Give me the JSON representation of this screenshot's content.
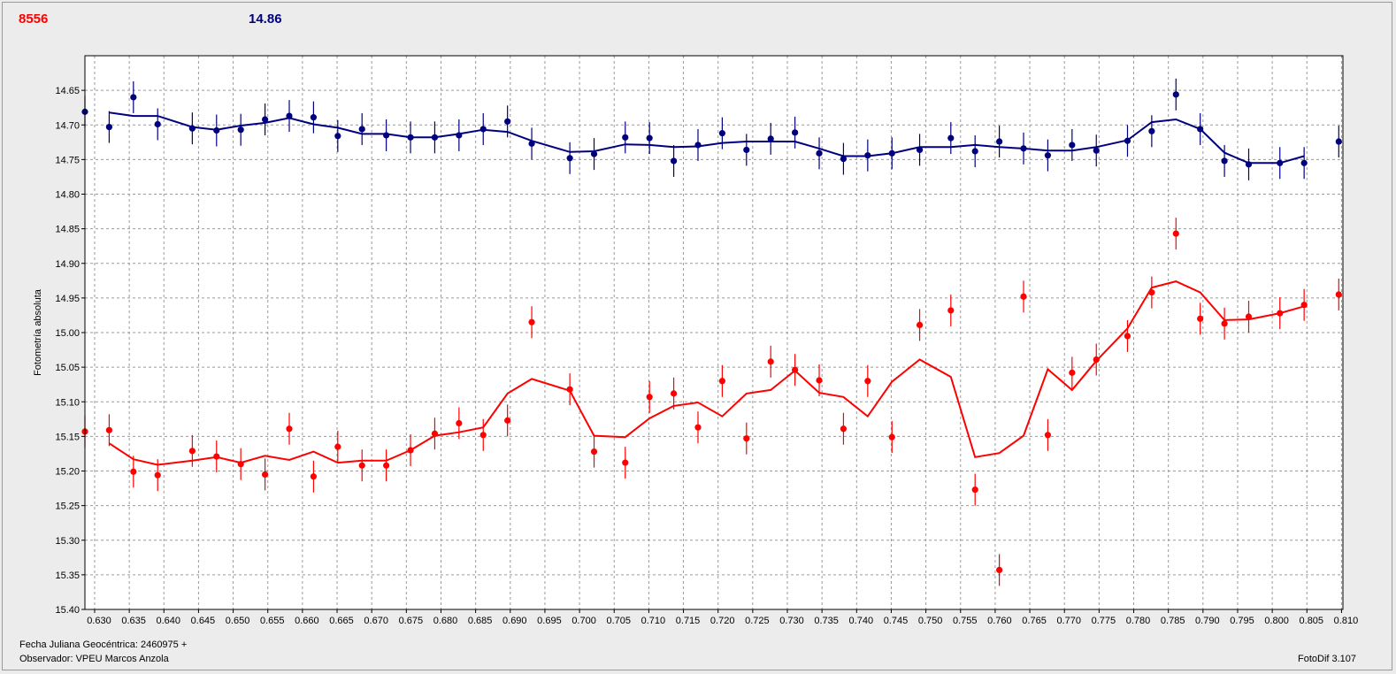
{
  "header": {
    "left_value": "8556",
    "left_color": "#ff0000",
    "mid_value": "14.86",
    "mid_color": "#00007f"
  },
  "footer": {
    "jd_label": "Fecha Juliana Geocéntrica: 2460975 +",
    "observer": "Observador: VPEU Marcos Anzola",
    "software": "FotoDif 3.107"
  },
  "chart_data": {
    "type": "scatter",
    "title": "",
    "xlabel": "",
    "ylabel": "Fotometría absoluta",
    "xlim": [
      0.6286,
      0.8102
    ],
    "ylim": [
      14.6,
      15.4
    ],
    "y_inverted": true,
    "grid": true,
    "x_ticks": [
      "0.630",
      "0.635",
      "0.640",
      "0.645",
      "0.650",
      "0.655",
      "0.660",
      "0.665",
      "0.670",
      "0.675",
      "0.680",
      "0.685",
      "0.690",
      "0.695",
      "0.700",
      "0.705",
      "0.710",
      "0.715",
      "0.720",
      "0.725",
      "0.730",
      "0.735",
      "0.740",
      "0.745",
      "0.750",
      "0.755",
      "0.760",
      "0.765",
      "0.770",
      "0.775",
      "0.780",
      "0.785",
      "0.790",
      "0.795",
      "0.800",
      "0.805",
      "0.810"
    ],
    "y_ticks": [
      "14.65",
      "14.70",
      "14.75",
      "14.80",
      "14.85",
      "14.90",
      "14.95",
      "15.00",
      "15.05",
      "15.10",
      "15.15",
      "15.20",
      "15.25",
      "15.30",
      "15.35",
      "15.40"
    ],
    "series": [
      {
        "color": "#00007f",
        "points": [
          [
            0.6286,
            14.681
          ],
          [
            0.6321,
            14.703
          ],
          [
            0.6356,
            14.66
          ],
          [
            0.6391,
            14.699
          ],
          [
            0.6441,
            14.705
          ],
          [
            0.6476,
            14.708
          ],
          [
            0.6511,
            14.707
          ],
          [
            0.6546,
            14.692
          ],
          [
            0.6581,
            14.687
          ],
          [
            0.6616,
            14.689
          ],
          [
            0.6651,
            14.716
          ],
          [
            0.6686,
            14.706
          ],
          [
            0.6721,
            14.715
          ],
          [
            0.6756,
            14.718
          ],
          [
            0.6791,
            14.718
          ],
          [
            0.6826,
            14.715
          ],
          [
            0.6861,
            14.706
          ],
          [
            0.6896,
            14.695
          ],
          [
            0.6931,
            14.727
          ],
          [
            0.6986,
            14.748
          ],
          [
            0.7021,
            14.742
          ],
          [
            0.7066,
            14.718
          ],
          [
            0.7101,
            14.719
          ],
          [
            0.7136,
            14.752
          ],
          [
            0.7171,
            14.729
          ],
          [
            0.7206,
            14.712
          ],
          [
            0.7241,
            14.736
          ],
          [
            0.7276,
            14.72
          ],
          [
            0.7311,
            14.711
          ],
          [
            0.7346,
            14.741
          ],
          [
            0.7381,
            14.749
          ],
          [
            0.7416,
            14.744
          ],
          [
            0.7451,
            14.741
          ],
          [
            0.7491,
            14.736
          ],
          [
            0.7536,
            14.719
          ],
          [
            0.7571,
            14.738
          ],
          [
            0.7606,
            14.724
          ],
          [
            0.7641,
            14.734
          ],
          [
            0.7676,
            14.744
          ],
          [
            0.7711,
            14.729
          ],
          [
            0.7746,
            14.737
          ],
          [
            0.7791,
            14.723
          ],
          [
            0.7826,
            14.709
          ],
          [
            0.7861,
            14.656
          ],
          [
            0.7896,
            14.706
          ],
          [
            0.7931,
            14.752
          ],
          [
            0.7966,
            14.757
          ],
          [
            0.8011,
            14.755
          ],
          [
            0.8046,
            14.755
          ],
          [
            0.8096,
            14.724
          ]
        ],
        "line": [
          [
            0.6321,
            14.682
          ],
          [
            0.6356,
            14.687
          ],
          [
            0.6391,
            14.687
          ],
          [
            0.6441,
            14.703
          ],
          [
            0.6476,
            14.707
          ],
          [
            0.6511,
            14.701
          ],
          [
            0.6546,
            14.697
          ],
          [
            0.6581,
            14.69
          ],
          [
            0.6616,
            14.699
          ],
          [
            0.6651,
            14.704
          ],
          [
            0.6686,
            14.713
          ],
          [
            0.6721,
            14.713
          ],
          [
            0.6756,
            14.718
          ],
          [
            0.6791,
            14.718
          ],
          [
            0.6826,
            14.713
          ],
          [
            0.6861,
            14.707
          ],
          [
            0.6896,
            14.71
          ],
          [
            0.6931,
            14.723
          ],
          [
            0.6986,
            14.739
          ],
          [
            0.7021,
            14.738
          ],
          [
            0.7066,
            14.728
          ],
          [
            0.7101,
            14.729
          ],
          [
            0.7136,
            14.732
          ],
          [
            0.7171,
            14.731
          ],
          [
            0.7206,
            14.726
          ],
          [
            0.7241,
            14.724
          ],
          [
            0.7276,
            14.724
          ],
          [
            0.7311,
            14.724
          ],
          [
            0.7346,
            14.734
          ],
          [
            0.7381,
            14.745
          ],
          [
            0.7416,
            14.745
          ],
          [
            0.7451,
            14.741
          ],
          [
            0.7491,
            14.732
          ],
          [
            0.7536,
            14.732
          ],
          [
            0.7571,
            14.729
          ],
          [
            0.7606,
            14.732
          ],
          [
            0.7641,
            14.734
          ],
          [
            0.7676,
            14.737
          ],
          [
            0.7711,
            14.737
          ],
          [
            0.7746,
            14.732
          ],
          [
            0.7791,
            14.722
          ],
          [
            0.7826,
            14.696
          ],
          [
            0.7861,
            14.692
          ],
          [
            0.7896,
            14.706
          ],
          [
            0.7931,
            14.74
          ],
          [
            0.7966,
            14.755
          ],
          [
            0.8011,
            14.755
          ],
          [
            0.8046,
            14.745
          ]
        ]
      },
      {
        "color": "#ff0000",
        "points": [
          [
            0.6286,
            15.143
          ],
          [
            0.6321,
            15.141
          ],
          [
            0.6356,
            15.201
          ],
          [
            0.6391,
            15.206
          ],
          [
            0.6441,
            15.171
          ],
          [
            0.6476,
            15.179
          ],
          [
            0.6511,
            15.19
          ],
          [
            0.6546,
            15.205
          ],
          [
            0.6581,
            15.139
          ],
          [
            0.6616,
            15.208
          ],
          [
            0.6651,
            15.165
          ],
          [
            0.6686,
            15.192
          ],
          [
            0.6721,
            15.192
          ],
          [
            0.6756,
            15.17
          ],
          [
            0.6791,
            15.146
          ],
          [
            0.6826,
            15.131
          ],
          [
            0.6861,
            15.148
          ],
          [
            0.6896,
            15.127
          ],
          [
            0.6931,
            14.985
          ],
          [
            0.6986,
            15.082
          ],
          [
            0.7021,
            15.172
          ],
          [
            0.7066,
            15.188
          ],
          [
            0.7101,
            15.093
          ],
          [
            0.7136,
            15.088
          ],
          [
            0.7171,
            15.137
          ],
          [
            0.7206,
            15.07
          ],
          [
            0.7241,
            15.153
          ],
          [
            0.7276,
            15.042
          ],
          [
            0.7311,
            15.054
          ],
          [
            0.7346,
            15.069
          ],
          [
            0.7381,
            15.139
          ],
          [
            0.7416,
            15.07
          ],
          [
            0.7451,
            15.151
          ],
          [
            0.7491,
            14.989
          ],
          [
            0.7536,
            14.968
          ],
          [
            0.7571,
            15.227
          ],
          [
            0.7606,
            15.343
          ],
          [
            0.7641,
            14.948
          ],
          [
            0.7676,
            15.148
          ],
          [
            0.7711,
            15.058
          ],
          [
            0.7746,
            15.039
          ],
          [
            0.7791,
            15.005
          ],
          [
            0.7826,
            14.942
          ],
          [
            0.7861,
            14.857
          ],
          [
            0.7896,
            14.98
          ],
          [
            0.7931,
            14.987
          ],
          [
            0.7966,
            14.977
          ],
          [
            0.8011,
            14.972
          ],
          [
            0.8046,
            14.96
          ],
          [
            0.8096,
            14.945
          ]
        ],
        "line": [
          [
            0.6321,
            15.16
          ],
          [
            0.6356,
            15.183
          ],
          [
            0.6391,
            15.191
          ],
          [
            0.6441,
            15.185
          ],
          [
            0.6476,
            15.18
          ],
          [
            0.6511,
            15.188
          ],
          [
            0.6546,
            15.178
          ],
          [
            0.6581,
            15.184
          ],
          [
            0.6616,
            15.172
          ],
          [
            0.6651,
            15.188
          ],
          [
            0.6686,
            15.185
          ],
          [
            0.6721,
            15.185
          ],
          [
            0.6756,
            15.17
          ],
          [
            0.6791,
            15.149
          ],
          [
            0.6826,
            15.144
          ],
          [
            0.6861,
            15.137
          ],
          [
            0.6896,
            15.088
          ],
          [
            0.6931,
            15.067
          ],
          [
            0.6986,
            15.084
          ],
          [
            0.7021,
            15.149
          ],
          [
            0.7066,
            15.151
          ],
          [
            0.7101,
            15.124
          ],
          [
            0.7136,
            15.106
          ],
          [
            0.7171,
            15.101
          ],
          [
            0.7206,
            15.121
          ],
          [
            0.7241,
            15.088
          ],
          [
            0.7276,
            15.083
          ],
          [
            0.7311,
            15.055
          ],
          [
            0.7346,
            15.087
          ],
          [
            0.7381,
            15.093
          ],
          [
            0.7416,
            15.121
          ],
          [
            0.7451,
            15.071
          ],
          [
            0.7491,
            15.039
          ],
          [
            0.7536,
            15.064
          ],
          [
            0.7571,
            15.18
          ],
          [
            0.7606,
            15.174
          ],
          [
            0.7641,
            15.149
          ],
          [
            0.7676,
            15.053
          ],
          [
            0.7711,
            15.083
          ],
          [
            0.7746,
            15.041
          ],
          [
            0.7791,
            14.994
          ],
          [
            0.7826,
            14.935
          ],
          [
            0.7861,
            14.926
          ],
          [
            0.7896,
            14.942
          ],
          [
            0.7931,
            14.982
          ],
          [
            0.7966,
            14.981
          ],
          [
            0.8011,
            14.972
          ],
          [
            0.8046,
            14.962
          ]
        ]
      }
    ]
  }
}
